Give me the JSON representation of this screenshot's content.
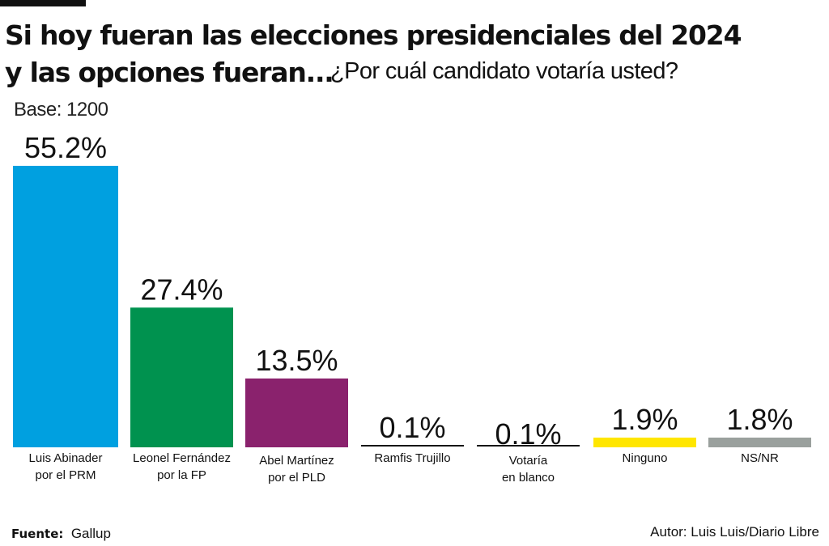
{
  "header": {
    "title_line1": "Si hoy fueran las elecciones presidenciales del 2024",
    "title_line2": "y las opciones fueran...",
    "question": "¿Por cuál candidato votaría usted?",
    "base": "Base: 1200"
  },
  "footer": {
    "source_label": "Fuente:",
    "source_value": "Gallup",
    "author": "Autor: Luis Luis/Diario Libre"
  },
  "chart_data": {
    "type": "bar",
    "title": "Si hoy fueran las elecciones presidenciales del 2024 y las opciones fueran... ¿Por cuál candidato votaría usted?",
    "xlabel": "",
    "ylabel": "",
    "unit": "%",
    "ylim": [
      0,
      55.2
    ],
    "grid": false,
    "legend": "none",
    "categories": [
      [
        "Luis Abinader",
        "por el PRM"
      ],
      [
        "Leonel Fernández",
        "por la FP"
      ],
      [
        "Abel Martínez",
        "por el PLD"
      ],
      [
        "Ramfis Trujillo"
      ],
      [
        "Votaría",
        "en blanco"
      ],
      [
        "Ninguno"
      ],
      [
        "NS/NR"
      ]
    ],
    "values": [
      55.2,
      27.4,
      13.5,
      0.1,
      0.1,
      1.9,
      1.8
    ],
    "labels": [
      "55.2%",
      "27.4%",
      "13.5%",
      "0.1%",
      "0.1%",
      "1.9%",
      "1.8%"
    ],
    "colors": [
      "#00a0e0",
      "#00924f",
      "#8a226d",
      "#111111",
      "#111111",
      "#ffe600",
      "#9aa09d"
    ]
  }
}
